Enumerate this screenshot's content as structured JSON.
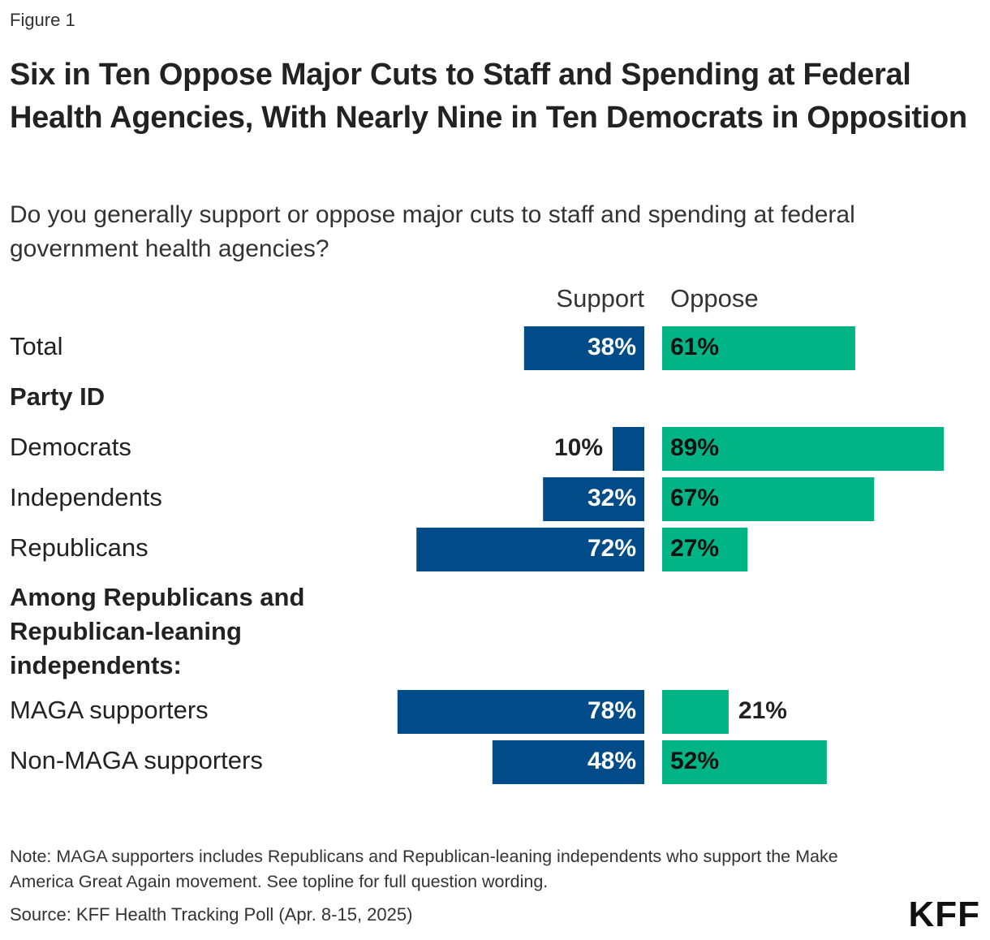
{
  "figure_label": "Figure 1",
  "title": "Six in Ten Oppose Major Cuts to Staff and Spending at Federal Health Agencies, With Nearly Nine in Ten Democrats in Opposition",
  "subtitle": "Do you generally support or oppose major cuts to staff and spending at federal government health agencies?",
  "note": "Note: MAGA supporters includes Republicans and Republican-leaning independents who support the Make America Great Again movement. See topline for full question wording.",
  "source": "Source: KFF Health Tracking Poll (Apr. 8-15, 2025)",
  "logo": "KFF",
  "colors": {
    "support": "#004b88",
    "oppose": "#00b485"
  },
  "chart_data": {
    "type": "bar",
    "orientation": "horizontal-diverging",
    "series": [
      {
        "name": "Support",
        "color": "#004b88"
      },
      {
        "name": "Oppose",
        "color": "#00b485"
      }
    ],
    "rows": [
      {
        "kind": "bar",
        "label": "Total",
        "support": 38,
        "oppose": 61
      },
      {
        "kind": "heading",
        "label": "Party ID"
      },
      {
        "kind": "bar",
        "label": "Democrats",
        "support": 10,
        "oppose": 89
      },
      {
        "kind": "bar",
        "label": "Independents",
        "support": 32,
        "oppose": 67
      },
      {
        "kind": "bar",
        "label": "Republicans",
        "support": 72,
        "oppose": 27
      },
      {
        "kind": "heading",
        "label": "Among Republicans and Republican-leaning independents:",
        "lines": [
          "Among Republicans and",
          "Republican-leaning",
          "independents:"
        ]
      },
      {
        "kind": "bar",
        "label": "MAGA supporters",
        "support": 78,
        "oppose": 21
      },
      {
        "kind": "bar",
        "label": "Non-MAGA supporters",
        "support": 48,
        "oppose": 52
      }
    ],
    "value_suffix": "%"
  }
}
